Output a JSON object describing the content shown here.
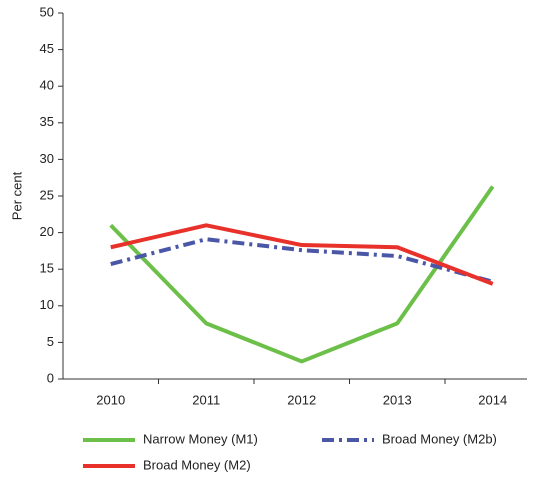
{
  "chart_data": {
    "type": "line",
    "ylabel": "Per cent",
    "categories": [
      "2010",
      "2011",
      "2012",
      "2013",
      "2014"
    ],
    "series": [
      {
        "name": "Narrow Money (M1)",
        "color": "#6cc04a",
        "values": [
          21,
          7.6,
          2.4,
          7.6,
          26.3
        ]
      },
      {
        "name": "Broad Money (M2b)",
        "color": "#4a56a6",
        "dash": "dashdot",
        "values": [
          15.7,
          19.1,
          17.6,
          16.8,
          13.3
        ]
      },
      {
        "name": "Broad Money (M2)",
        "color": "#e8312a",
        "values": [
          18,
          21,
          18.3,
          18,
          13
        ]
      }
    ],
    "ylim": [
      0,
      50
    ],
    "yticks": [
      0,
      5,
      10,
      15,
      20,
      25,
      30,
      35,
      40,
      45,
      50
    ],
    "grid": false
  }
}
